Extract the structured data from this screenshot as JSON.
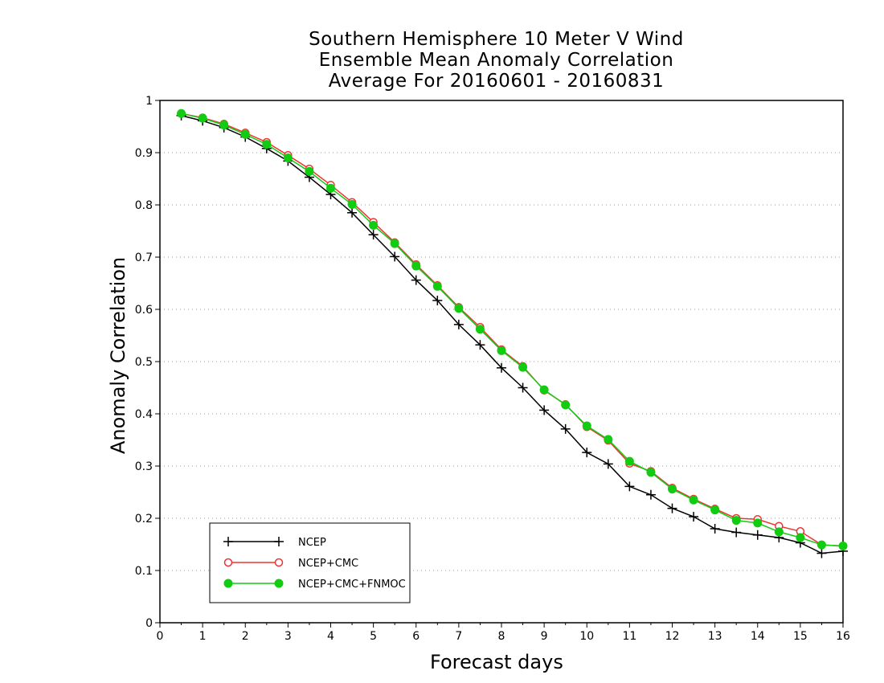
{
  "chart_data": {
    "type": "line",
    "title": [
      "Southern Hemisphere 10 Meter V Wind",
      "Ensemble Mean Anomaly Correlation",
      "Average For 20160601 - 20160831"
    ],
    "xlabel": "Forecast days",
    "ylabel": "Anomaly Correlation",
    "xlim": [
      0,
      16
    ],
    "ylim": [
      0,
      1
    ],
    "xticks": [
      "0",
      "1",
      "2",
      "3",
      "4",
      "5",
      "6",
      "7",
      "8",
      "9",
      "10",
      "11",
      "12",
      "13",
      "14",
      "15",
      "16"
    ],
    "yticks": [
      "0",
      "0.1",
      "0.2",
      "0.3",
      "0.4",
      "0.5",
      "0.6",
      "0.7",
      "0.8",
      "0.9",
      "1"
    ],
    "grid": "horizontal dotted",
    "legend_position": "bottom-left",
    "x": [
      0.5,
      1,
      1.5,
      2,
      2.5,
      3,
      3.5,
      4,
      4.5,
      5,
      5.5,
      6,
      6.5,
      7,
      7.5,
      8,
      8.5,
      9,
      9.5,
      10,
      10.5,
      11,
      11.5,
      12,
      12.5,
      13,
      13.5,
      14,
      14.5,
      15,
      15.5,
      16
    ],
    "series": [
      {
        "name": "NCEP",
        "color": "#000000",
        "marker": "plus",
        "values": [
          0.971,
          0.961,
          0.948,
          0.93,
          0.908,
          0.884,
          0.853,
          0.82,
          0.785,
          0.743,
          0.701,
          0.656,
          0.617,
          0.571,
          0.532,
          0.488,
          0.45,
          0.407,
          0.371,
          0.326,
          0.304,
          0.261,
          0.245,
          0.219,
          0.203,
          0.18,
          0.173,
          0.168,
          0.163,
          0.153,
          0.133,
          0.137
        ]
      },
      {
        "name": "NCEP+CMC",
        "color": "#ee3333",
        "marker": "open-circle",
        "values": [
          0.975,
          0.967,
          0.955,
          0.938,
          0.92,
          0.895,
          0.869,
          0.838,
          0.805,
          0.767,
          0.728,
          0.686,
          0.646,
          0.604,
          0.566,
          0.523,
          0.491,
          0.445,
          0.418,
          0.375,
          0.349,
          0.305,
          0.29,
          0.258,
          0.237,
          0.218,
          0.2,
          0.198,
          0.185,
          0.175,
          0.149,
          0.147
        ]
      },
      {
        "name": "NCEP+CMC+FNMOC",
        "color": "#11cc11",
        "marker": "filled-circle",
        "values": [
          0.975,
          0.966,
          0.953,
          0.935,
          0.916,
          0.89,
          0.864,
          0.832,
          0.801,
          0.761,
          0.726,
          0.683,
          0.644,
          0.602,
          0.562,
          0.521,
          0.489,
          0.446,
          0.417,
          0.377,
          0.351,
          0.309,
          0.288,
          0.256,
          0.235,
          0.216,
          0.196,
          0.191,
          0.174,
          0.163,
          0.149,
          0.147
        ]
      }
    ]
  }
}
